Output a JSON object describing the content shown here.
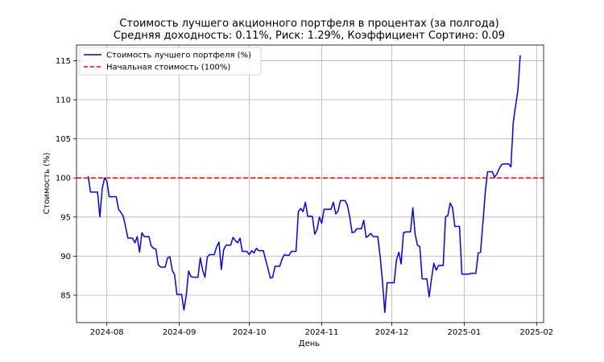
{
  "chart_data": {
    "type": "line",
    "title_line1": "Стоимость лучшего акционного портфеля в процентах (за полгода)",
    "title_line2": "Средняя доходность: 0.11%, Риск: 1.29%, Коэффициент Сортино: 0.09",
    "xlabel": "День",
    "ylabel": "Стоимость (%)",
    "x_ticks": [
      "2024-08",
      "2024-09",
      "2024-10",
      "2024-11",
      "2024-12",
      "2025-01",
      "2025-02"
    ],
    "y_ticks": [
      85,
      90,
      95,
      100,
      105,
      110,
      115
    ],
    "xlim": [
      "2024-07-19",
      "2025-02-04"
    ],
    "ylim": [
      81.5,
      117
    ],
    "grid": true,
    "legend_position": "top-left",
    "series": [
      {
        "name": "Стоимость лучшего портфеля (%)",
        "color": "#0000ff",
        "style": "solid",
        "points": [
          [
            "2024-07-24",
            100.2
          ],
          [
            "2024-07-25",
            98.2
          ],
          [
            "2024-07-26",
            98.2
          ],
          [
            "2024-07-27",
            98.2
          ],
          [
            "2024-07-28",
            98.2
          ],
          [
            "2024-07-29",
            95.0
          ],
          [
            "2024-07-30",
            98.6
          ],
          [
            "2024-07-31",
            100.0
          ],
          [
            "2024-08-01",
            99.6
          ],
          [
            "2024-08-02",
            97.6
          ],
          [
            "2024-08-03",
            97.6
          ],
          [
            "2024-08-04",
            97.6
          ],
          [
            "2024-08-05",
            97.6
          ],
          [
            "2024-08-06",
            96.0
          ],
          [
            "2024-08-07",
            95.6
          ],
          [
            "2024-08-08",
            95.1
          ],
          [
            "2024-08-09",
            93.8
          ],
          [
            "2024-08-10",
            92.3
          ],
          [
            "2024-08-11",
            92.3
          ],
          [
            "2024-08-12",
            92.3
          ],
          [
            "2024-08-13",
            91.7
          ],
          [
            "2024-08-14",
            92.5
          ],
          [
            "2024-08-15",
            90.5
          ],
          [
            "2024-08-16",
            93.0
          ],
          [
            "2024-08-17",
            92.5
          ],
          [
            "2024-08-18",
            92.5
          ],
          [
            "2024-08-19",
            92.5
          ],
          [
            "2024-08-20",
            91.3
          ],
          [
            "2024-08-21",
            91.0
          ],
          [
            "2024-08-22",
            90.9
          ],
          [
            "2024-08-23",
            88.9
          ],
          [
            "2024-08-24",
            88.6
          ],
          [
            "2024-08-25",
            88.6
          ],
          [
            "2024-08-26",
            88.6
          ],
          [
            "2024-08-27",
            89.8
          ],
          [
            "2024-08-28",
            89.9
          ],
          [
            "2024-08-29",
            88.2
          ],
          [
            "2024-08-30",
            87.6
          ],
          [
            "2024-08-31",
            85.1
          ],
          [
            "2024-09-01",
            85.1
          ],
          [
            "2024-09-02",
            85.1
          ],
          [
            "2024-09-03",
            83.1
          ],
          [
            "2024-09-04",
            85.0
          ],
          [
            "2024-09-05",
            88.1
          ],
          [
            "2024-09-06",
            87.4
          ],
          [
            "2024-09-07",
            87.3
          ],
          [
            "2024-09-08",
            87.3
          ],
          [
            "2024-09-09",
            87.3
          ],
          [
            "2024-09-10",
            89.8
          ],
          [
            "2024-09-11",
            88.2
          ],
          [
            "2024-09-12",
            87.3
          ],
          [
            "2024-09-13",
            89.9
          ],
          [
            "2024-09-14",
            90.2
          ],
          [
            "2024-09-15",
            90.2
          ],
          [
            "2024-09-16",
            90.2
          ],
          [
            "2024-09-17",
            91.2
          ],
          [
            "2024-09-18",
            91.8
          ],
          [
            "2024-09-19",
            88.3
          ],
          [
            "2024-09-20",
            90.8
          ],
          [
            "2024-09-21",
            91.4
          ],
          [
            "2024-09-22",
            91.4
          ],
          [
            "2024-09-23",
            91.4
          ],
          [
            "2024-09-24",
            92.4
          ],
          [
            "2024-09-25",
            92.0
          ],
          [
            "2024-09-26",
            91.7
          ],
          [
            "2024-09-27",
            92.3
          ],
          [
            "2024-09-28",
            90.6
          ],
          [
            "2024-09-29",
            90.6
          ],
          [
            "2024-09-30",
            90.6
          ],
          [
            "2024-10-01",
            90.2
          ],
          [
            "2024-10-02",
            90.7
          ],
          [
            "2024-10-03",
            90.4
          ],
          [
            "2024-10-04",
            91.0
          ],
          [
            "2024-10-05",
            90.7
          ],
          [
            "2024-10-06",
            90.7
          ],
          [
            "2024-10-07",
            90.7
          ],
          [
            "2024-10-08",
            89.5
          ],
          [
            "2024-10-09",
            88.4
          ],
          [
            "2024-10-10",
            87.2
          ],
          [
            "2024-10-11",
            87.3
          ],
          [
            "2024-10-12",
            88.7
          ],
          [
            "2024-10-13",
            88.7
          ],
          [
            "2024-10-14",
            88.7
          ],
          [
            "2024-10-15",
            89.6
          ],
          [
            "2024-10-16",
            90.2
          ],
          [
            "2024-10-17",
            90.1
          ],
          [
            "2024-10-18",
            90.1
          ],
          [
            "2024-10-19",
            90.6
          ],
          [
            "2024-10-20",
            90.6
          ],
          [
            "2024-10-21",
            90.6
          ],
          [
            "2024-10-22",
            95.7
          ],
          [
            "2024-10-23",
            96.1
          ],
          [
            "2024-10-24",
            95.7
          ],
          [
            "2024-10-25",
            96.9
          ],
          [
            "2024-10-26",
            95.1
          ],
          [
            "2024-10-27",
            95.1
          ],
          [
            "2024-10-28",
            95.1
          ],
          [
            "2024-10-29",
            92.8
          ],
          [
            "2024-10-30",
            93.4
          ],
          [
            "2024-10-31",
            95.0
          ],
          [
            "2024-11-01",
            94.2
          ],
          [
            "2024-11-02",
            96.0
          ],
          [
            "2024-11-03",
            96.0
          ],
          [
            "2024-11-04",
            96.0
          ],
          [
            "2024-11-05",
            96.0
          ],
          [
            "2024-11-06",
            96.9
          ],
          [
            "2024-11-07",
            95.4
          ],
          [
            "2024-11-08",
            95.8
          ],
          [
            "2024-11-09",
            97.1
          ],
          [
            "2024-11-10",
            97.1
          ],
          [
            "2024-11-11",
            97.1
          ],
          [
            "2024-11-12",
            96.5
          ],
          [
            "2024-11-13",
            95.0
          ],
          [
            "2024-11-14",
            93.0
          ],
          [
            "2024-11-15",
            93.1
          ],
          [
            "2024-11-16",
            93.5
          ],
          [
            "2024-11-17",
            93.5
          ],
          [
            "2024-11-18",
            93.5
          ],
          [
            "2024-11-19",
            94.6
          ],
          [
            "2024-11-20",
            92.4
          ],
          [
            "2024-11-21",
            92.6
          ],
          [
            "2024-11-22",
            92.9
          ],
          [
            "2024-11-23",
            92.5
          ],
          [
            "2024-11-24",
            92.5
          ],
          [
            "2024-11-25",
            92.5
          ],
          [
            "2024-11-26",
            90.0
          ],
          [
            "2024-11-27",
            86.8
          ],
          [
            "2024-11-28",
            82.8
          ],
          [
            "2024-11-29",
            86.6
          ],
          [
            "2024-11-30",
            86.6
          ],
          [
            "2024-12-01",
            86.6
          ],
          [
            "2024-12-02",
            86.6
          ],
          [
            "2024-12-03",
            89.5
          ],
          [
            "2024-12-04",
            90.5
          ],
          [
            "2024-12-05",
            89.0
          ],
          [
            "2024-12-06",
            93.0
          ],
          [
            "2024-12-07",
            93.1
          ],
          [
            "2024-12-08",
            93.1
          ],
          [
            "2024-12-09",
            93.1
          ],
          [
            "2024-12-10",
            96.2
          ],
          [
            "2024-12-11",
            92.8
          ],
          [
            "2024-12-12",
            91.4
          ],
          [
            "2024-12-13",
            91.2
          ],
          [
            "2024-12-14",
            87.1
          ],
          [
            "2024-12-15",
            87.1
          ],
          [
            "2024-12-16",
            87.1
          ],
          [
            "2024-12-17",
            84.8
          ],
          [
            "2024-12-18",
            87.1
          ],
          [
            "2024-12-19",
            89.1
          ],
          [
            "2024-12-20",
            88.2
          ],
          [
            "2024-12-21",
            88.8
          ],
          [
            "2024-12-22",
            88.8
          ],
          [
            "2024-12-23",
            88.8
          ],
          [
            "2024-12-24",
            95.0
          ],
          [
            "2024-12-25",
            95.2
          ],
          [
            "2024-12-26",
            96.8
          ],
          [
            "2024-12-27",
            96.2
          ],
          [
            "2024-12-28",
            93.8
          ],
          [
            "2024-12-29",
            93.8
          ],
          [
            "2024-12-30",
            93.8
          ],
          [
            "2024-12-31",
            87.7
          ],
          [
            "2025-01-01",
            87.7
          ],
          [
            "2025-01-02",
            87.7
          ],
          [
            "2025-01-03",
            87.7
          ],
          [
            "2025-01-04",
            87.8
          ],
          [
            "2025-01-05",
            87.8
          ],
          [
            "2025-01-06",
            87.8
          ],
          [
            "2025-01-07",
            90.4
          ],
          [
            "2025-01-08",
            90.5
          ],
          [
            "2025-01-09",
            94.2
          ],
          [
            "2025-01-10",
            98.1
          ],
          [
            "2025-01-11",
            100.8
          ],
          [
            "2025-01-12",
            100.8
          ],
          [
            "2025-01-13",
            100.8
          ],
          [
            "2025-01-14",
            100.1
          ],
          [
            "2025-01-15",
            100.5
          ],
          [
            "2025-01-16",
            101.2
          ],
          [
            "2025-01-17",
            101.7
          ],
          [
            "2025-01-18",
            101.8
          ],
          [
            "2025-01-19",
            101.8
          ],
          [
            "2025-01-20",
            101.8
          ],
          [
            "2025-01-21",
            101.4
          ],
          [
            "2025-01-22",
            107.1
          ],
          [
            "2025-01-23",
            109.2
          ],
          [
            "2025-01-24",
            111.2
          ],
          [
            "2025-01-25",
            115.7
          ]
        ]
      },
      {
        "name": "Начальная стоимость (100%)",
        "color": "#ff0000",
        "style": "dashed",
        "y": 100
      }
    ]
  }
}
